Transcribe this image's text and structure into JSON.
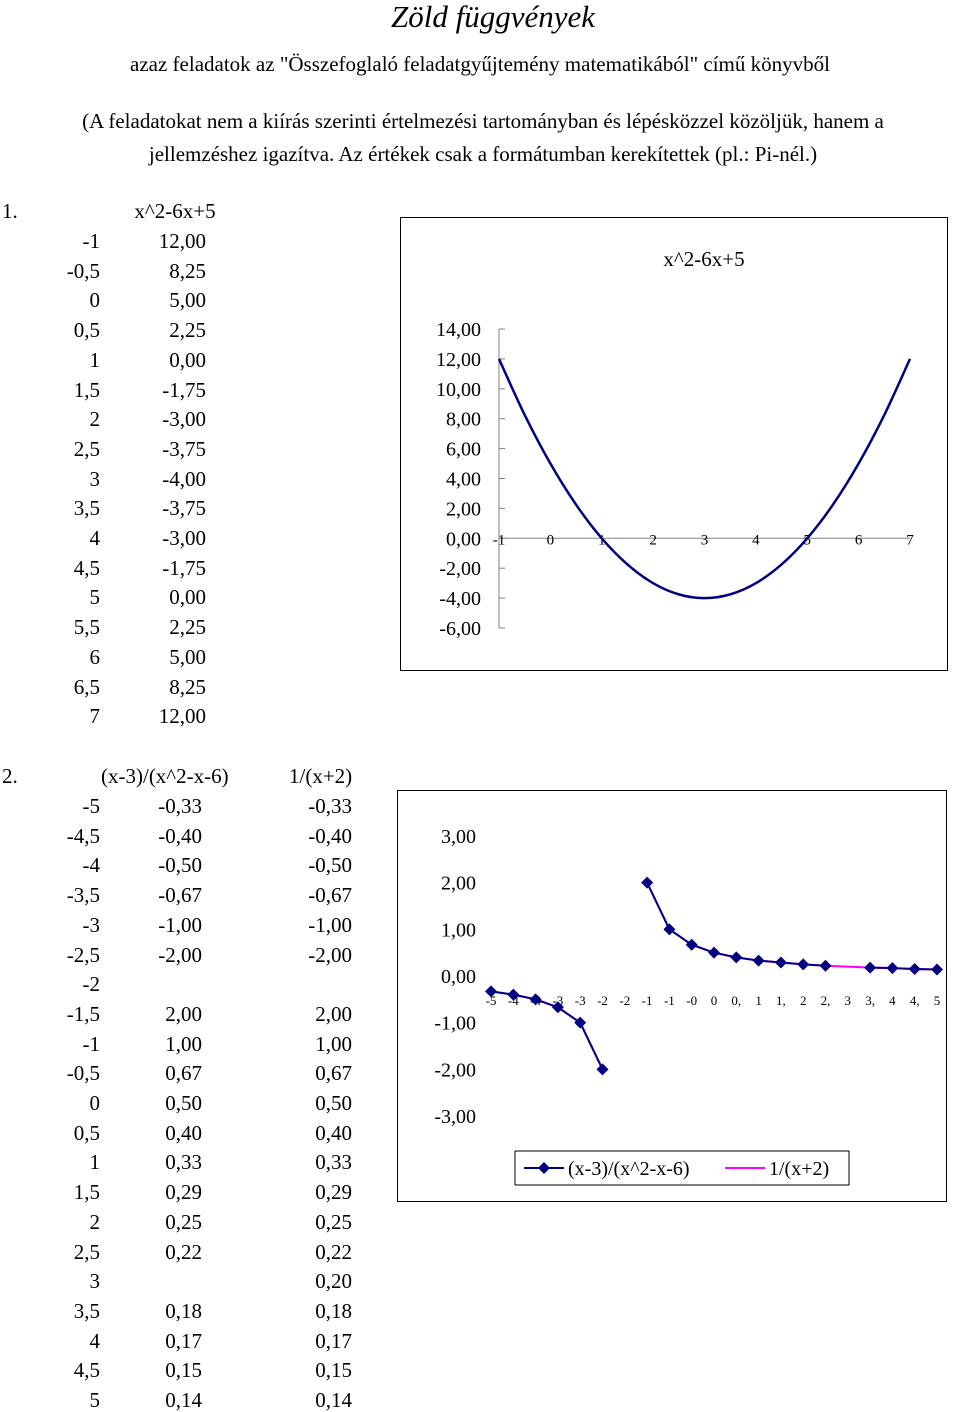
{
  "title": "Zöld függvények",
  "subtitle": "azaz feladatok az \"Összefoglaló feladatgyűjtemény matematikából\" című könyvből",
  "note_line1": "(A feladatokat nem a kiírás szerinti értelmezési tartományban és lépésközzel közöljük, hanem a",
  "note_line2": "jellemzéshez igazítva. Az értékek csak a formátumban kerekítettek (pl.: Pi-nél.)",
  "task1": {
    "number": "1.",
    "header": "x^2-6x+5",
    "rows": [
      [
        "-1",
        "12,00"
      ],
      [
        "-0,5",
        "8,25"
      ],
      [
        "0",
        "5,00"
      ],
      [
        "0,5",
        "2,25"
      ],
      [
        "1",
        "0,00"
      ],
      [
        "1,5",
        "-1,75"
      ],
      [
        "2",
        "-3,00"
      ],
      [
        "2,5",
        "-3,75"
      ],
      [
        "3",
        "-4,00"
      ],
      [
        "3,5",
        "-3,75"
      ],
      [
        "4",
        "-3,00"
      ],
      [
        "4,5",
        "-1,75"
      ],
      [
        "5",
        "0,00"
      ],
      [
        "5,5",
        "2,25"
      ],
      [
        "6",
        "5,00"
      ],
      [
        "6,5",
        "8,25"
      ],
      [
        "7",
        "12,00"
      ]
    ]
  },
  "task2": {
    "number": "2.",
    "header1": "(x-3)/(x^2-x-6)",
    "header2": "1/(x+2)",
    "rows": [
      [
        "-5",
        "-0,33",
        "-0,33"
      ],
      [
        "-4,5",
        "-0,40",
        "-0,40"
      ],
      [
        "-4",
        "-0,50",
        "-0,50"
      ],
      [
        "-3,5",
        "-0,67",
        "-0,67"
      ],
      [
        "-3",
        "-1,00",
        "-1,00"
      ],
      [
        "-2,5",
        "-2,00",
        "-2,00"
      ],
      [
        "-2",
        "",
        ""
      ],
      [
        "-1,5",
        "2,00",
        "2,00"
      ],
      [
        "-1",
        "1,00",
        "1,00"
      ],
      [
        "-0,5",
        "0,67",
        "0,67"
      ],
      [
        "0",
        "0,50",
        "0,50"
      ],
      [
        "0,5",
        "0,40",
        "0,40"
      ],
      [
        "1",
        "0,33",
        "0,33"
      ],
      [
        "1,5",
        "0,29",
        "0,29"
      ],
      [
        "2",
        "0,25",
        "0,25"
      ],
      [
        "2,5",
        "0,22",
        "0,22"
      ],
      [
        "3",
        "",
        "0,20"
      ],
      [
        "3,5",
        "0,18",
        "0,18"
      ],
      [
        "4",
        "0,17",
        "0,17"
      ],
      [
        "4,5",
        "0,15",
        "0,15"
      ],
      [
        "5",
        "0,14",
        "0,14"
      ]
    ]
  },
  "chart_data": [
    {
      "type": "line",
      "title": "x^2-6x+5",
      "x": [
        -1,
        -0.5,
        0,
        0.5,
        1,
        1.5,
        2,
        2.5,
        3,
        3.5,
        4,
        4.5,
        5,
        5.5,
        6,
        6.5,
        7
      ],
      "series": [
        {
          "values": [
            12,
            8.25,
            5,
            2.25,
            0,
            -1.75,
            -3,
            -3.75,
            -4,
            -3.75,
            -3,
            -1.75,
            0,
            2.25,
            5,
            8.25,
            12
          ],
          "color": "#000080"
        }
      ],
      "xticks": [
        "-1",
        "0",
        "1",
        "2",
        "3",
        "4",
        "5",
        "6",
        "7"
      ],
      "yticks": [
        "14,00",
        "12,00",
        "10,00",
        "8,00",
        "6,00",
        "4,00",
        "2,00",
        "0,00",
        "-2,00",
        "-4,00",
        "-6,00"
      ],
      "ylim": [
        -6,
        14
      ],
      "xlim": [
        -1,
        7
      ],
      "grid": false,
      "markers": false
    },
    {
      "type": "line",
      "categories": [
        "-5",
        "-4",
        "-4",
        "-3",
        "-3",
        "-2",
        "-2",
        "-1",
        "-1",
        "-0",
        "0",
        "0,",
        "1",
        "1,",
        "2",
        "2,",
        "3",
        "3,",
        "4",
        "4,",
        "5"
      ],
      "series": [
        {
          "name": "(x-3)/(x^2-x-6)",
          "color": "#000080",
          "marker": "diamond",
          "values": [
            -0.33,
            -0.4,
            -0.5,
            -0.67,
            -1.0,
            -2.0,
            null,
            2.0,
            1.0,
            0.67,
            0.5,
            0.4,
            0.33,
            0.29,
            0.25,
            0.22,
            null,
            0.18,
            0.17,
            0.15,
            0.14
          ]
        },
        {
          "name": "1/(x+2)",
          "color": "#ff00ff",
          "marker": "none",
          "values": [
            -0.33,
            -0.4,
            -0.5,
            -0.67,
            -1.0,
            -2.0,
            null,
            2.0,
            1.0,
            0.67,
            0.5,
            0.4,
            0.33,
            0.29,
            0.25,
            0.22,
            0.2,
            0.18,
            0.17,
            0.15,
            0.14
          ]
        }
      ],
      "yticks": [
        "3,00",
        "2,00",
        "1,00",
        "0,00",
        "-1,00",
        "-2,00",
        "-3,00"
      ],
      "ylim": [
        -3,
        3
      ],
      "grid": false,
      "legend": "bottom"
    }
  ]
}
